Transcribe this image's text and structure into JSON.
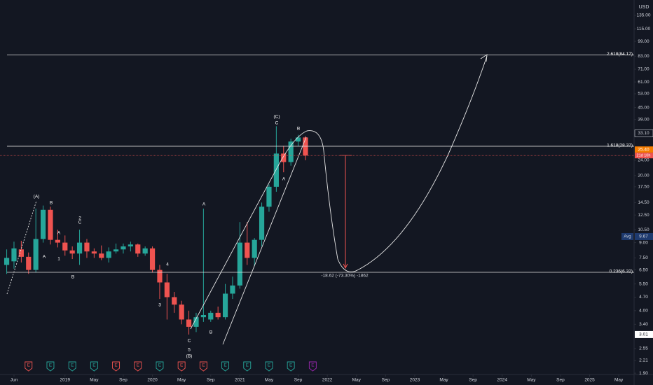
{
  "chart_data": {
    "type": "candlestick",
    "log_scale": true,
    "currency": "USD",
    "up_color": "#26a69a",
    "down_color": "#ef5350",
    "ylim": [
      1.87,
      162
    ],
    "yticks": [
      {
        "value": 135,
        "label": "135.00"
      },
      {
        "value": 115,
        "label": "115.00"
      },
      {
        "value": 99,
        "label": "99.00"
      },
      {
        "value": 83,
        "label": "83.00"
      },
      {
        "value": 71,
        "label": "71.00"
      },
      {
        "value": 61,
        "label": "61.00"
      },
      {
        "value": 53,
        "label": "53.00"
      },
      {
        "value": 45,
        "label": "45.00"
      },
      {
        "value": 39,
        "label": "39.00"
      },
      {
        "value": 24,
        "label": "24.00"
      },
      {
        "value": 20,
        "label": "20.00"
      },
      {
        "value": 17.5,
        "label": "17.50"
      },
      {
        "value": 14.5,
        "label": "14.50"
      },
      {
        "value": 12.5,
        "label": "12.50"
      },
      {
        "value": 10.5,
        "label": "10.50"
      },
      {
        "value": 9,
        "label": "9.00"
      },
      {
        "value": 7.5,
        "label": "7.50"
      },
      {
        "value": 6.5,
        "label": "6.50"
      },
      {
        "value": 5.5,
        "label": "5.50"
      },
      {
        "value": 4.7,
        "label": "4.70"
      },
      {
        "value": 4,
        "label": "4.00"
      },
      {
        "value": 3.4,
        "label": "3.40"
      },
      {
        "value": 2.55,
        "label": "2.55"
      },
      {
        "value": 2.21,
        "label": "2.21"
      },
      {
        "value": 1.9,
        "label": "1.90"
      }
    ],
    "xlim": [
      -0.92,
      86.1
    ],
    "xticks": [
      {
        "value": 1,
        "label": "Jun"
      },
      {
        "value": 8,
        "label": "2019"
      },
      {
        "value": 12,
        "label": "May"
      },
      {
        "value": 16,
        "label": "Sep"
      },
      {
        "value": 20,
        "label": "2020"
      },
      {
        "value": 24,
        "label": "May"
      },
      {
        "value": 28,
        "label": "Sep"
      },
      {
        "value": 32,
        "label": "2021"
      },
      {
        "value": 36,
        "label": "May"
      },
      {
        "value": 40,
        "label": "Sep"
      },
      {
        "value": 44,
        "label": "2022"
      },
      {
        "value": 48,
        "label": "May"
      },
      {
        "value": 52,
        "label": "Sep"
      },
      {
        "value": 56,
        "label": "2023"
      },
      {
        "value": 60,
        "label": "May"
      },
      {
        "value": 64,
        "label": "Sep"
      },
      {
        "value": 68,
        "label": "2024"
      },
      {
        "value": 72,
        "label": "May"
      },
      {
        "value": 76,
        "label": "Sep"
      },
      {
        "value": 80,
        "label": "2025"
      },
      {
        "value": 84,
        "label": "May"
      }
    ],
    "candles": [
      {
        "open": 6.9,
        "high": 8.3,
        "low": 6.2,
        "close": 7.5
      },
      {
        "open": 7.2,
        "high": 9.1,
        "low": 6.6,
        "close": 8.4
      },
      {
        "open": 8.3,
        "high": 9.2,
        "low": 7.1,
        "close": 7.6
      },
      {
        "open": 7.6,
        "high": 8.0,
        "low": 6.2,
        "close": 6.5
      },
      {
        "open": 6.5,
        "high": 13.5,
        "low": 6.3,
        "close": 9.4
      },
      {
        "open": 9.4,
        "high": 14.0,
        "low": 9.0,
        "close": 13.3
      },
      {
        "open": 13.3,
        "high": 13.8,
        "low": 8.8,
        "close": 9.3
      },
      {
        "open": 9.3,
        "high": 10.5,
        "low": 8.5,
        "close": 9.0
      },
      {
        "open": 9.0,
        "high": 9.8,
        "low": 7.7,
        "close": 8.2
      },
      {
        "open": 8.2,
        "high": 8.6,
        "low": 7.4,
        "close": 7.9
      },
      {
        "open": 7.9,
        "high": 10.5,
        "low": 6.9,
        "close": 9.0
      },
      {
        "open": 9.0,
        "high": 9.4,
        "low": 7.5,
        "close": 8.1
      },
      {
        "open": 8.1,
        "high": 8.4,
        "low": 7.5,
        "close": 7.9
      },
      {
        "open": 7.9,
        "high": 8.7,
        "low": 7.3,
        "close": 7.5
      },
      {
        "open": 7.5,
        "high": 8.5,
        "low": 7.1,
        "close": 8.1
      },
      {
        "open": 8.1,
        "high": 8.9,
        "low": 7.9,
        "close": 8.3
      },
      {
        "open": 8.3,
        "high": 8.9,
        "low": 7.9,
        "close": 8.6
      },
      {
        "open": 8.6,
        "high": 9.1,
        "low": 8.1,
        "close": 8.8
      },
      {
        "open": 8.8,
        "high": 8.9,
        "low": 7.6,
        "close": 7.9
      },
      {
        "open": 7.9,
        "high": 8.6,
        "low": 7.7,
        "close": 8.4
      },
      {
        "open": 8.4,
        "high": 8.6,
        "low": 6.3,
        "close": 6.5
      },
      {
        "open": 6.5,
        "high": 6.9,
        "low": 4.6,
        "close": 5.6
      },
      {
        "open": 5.6,
        "high": 6.2,
        "low": 3.6,
        "close": 4.7
      },
      {
        "open": 4.7,
        "high": 5.0,
        "low": 3.9,
        "close": 4.3
      },
      {
        "open": 4.3,
        "high": 4.5,
        "low": 3.4,
        "close": 3.6
      },
      {
        "open": 3.6,
        "high": 4.0,
        "low": 3.01,
        "close": 3.3
      },
      {
        "open": 3.3,
        "high": 3.9,
        "low": 3.1,
        "close": 3.7
      },
      {
        "open": 3.7,
        "high": 13.5,
        "low": 3.5,
        "close": 3.8
      },
      {
        "open": 3.6,
        "high": 4.0,
        "low": 3.5,
        "close": 3.9
      },
      {
        "open": 3.9,
        "high": 4.2,
        "low": 3.6,
        "close": 3.7
      },
      {
        "open": 3.7,
        "high": 5.5,
        "low": 3.6,
        "close": 4.9
      },
      {
        "open": 4.9,
        "high": 6.0,
        "low": 4.6,
        "close": 5.4
      },
      {
        "open": 5.4,
        "high": 11.5,
        "low": 5.2,
        "close": 9.0
      },
      {
        "open": 9.0,
        "high": 11.5,
        "low": 6.9,
        "close": 7.5
      },
      {
        "open": 7.5,
        "high": 9.5,
        "low": 6.8,
        "close": 9.3
      },
      {
        "open": 9.3,
        "high": 14.5,
        "low": 8.6,
        "close": 13.8
      },
      {
        "open": 13.8,
        "high": 18.0,
        "low": 13.0,
        "close": 17.5
      },
      {
        "open": 17.5,
        "high": 36.0,
        "low": 16.5,
        "close": 26.0
      },
      {
        "open": 26.0,
        "high": 28.5,
        "low": 20.8,
        "close": 23.5
      },
      {
        "open": 23.5,
        "high": 31.0,
        "low": 22.5,
        "close": 30.0
      },
      {
        "open": 30.0,
        "high": 32.5,
        "low": 28.5,
        "close": 31.5
      },
      {
        "open": 31.5,
        "high": 32.0,
        "low": 24.0,
        "close": 25.4
      }
    ],
    "fib_levels": [
      {
        "label": "2.618(84.17)",
        "value": 84.17
      },
      {
        "label": "1.618(28.37)",
        "value": 28.37
      },
      {
        "label": "0.236(6.32)",
        "value": 6.32
      }
    ],
    "crosshair": {
      "value": 33.1,
      "label": "33.10"
    },
    "last_price": {
      "value": 25.4,
      "label": "25.40",
      "countdown": "21d 10h"
    },
    "average": {
      "name": "Avg",
      "value": 9.67
    },
    "low_marker": {
      "value": 3.01
    },
    "measure_label": "-18.62 (-73.30%) -1862",
    "earnings": [
      {
        "label": "E",
        "color": "#ef5350"
      },
      {
        "label": "E",
        "color": "#26a69a"
      },
      {
        "label": "E",
        "color": "#26a69a"
      },
      {
        "label": "E",
        "color": "#26a69a"
      },
      {
        "label": "E",
        "color": "#ef5350"
      },
      {
        "label": "E",
        "color": "#ef5350"
      },
      {
        "label": "E",
        "color": "#26a69a"
      },
      {
        "label": "E",
        "color": "#ef5350"
      },
      {
        "label": "E",
        "color": "#ef5350"
      },
      {
        "label": "E",
        "color": "#26a69a"
      },
      {
        "label": "E",
        "color": "#26a69a"
      },
      {
        "label": "E",
        "color": "#26a69a"
      },
      {
        "label": "E",
        "color": "#26a69a"
      },
      {
        "label": "E",
        "color": "#9c27b0"
      }
    ],
    "wave_labels": [
      "(A)",
      "B",
      "A",
      "A",
      "1",
      "2",
      "C",
      "B",
      "4",
      "3",
      "A",
      "B",
      "C",
      "5",
      "(B)",
      "(C)",
      "C",
      "B",
      "A"
    ]
  }
}
